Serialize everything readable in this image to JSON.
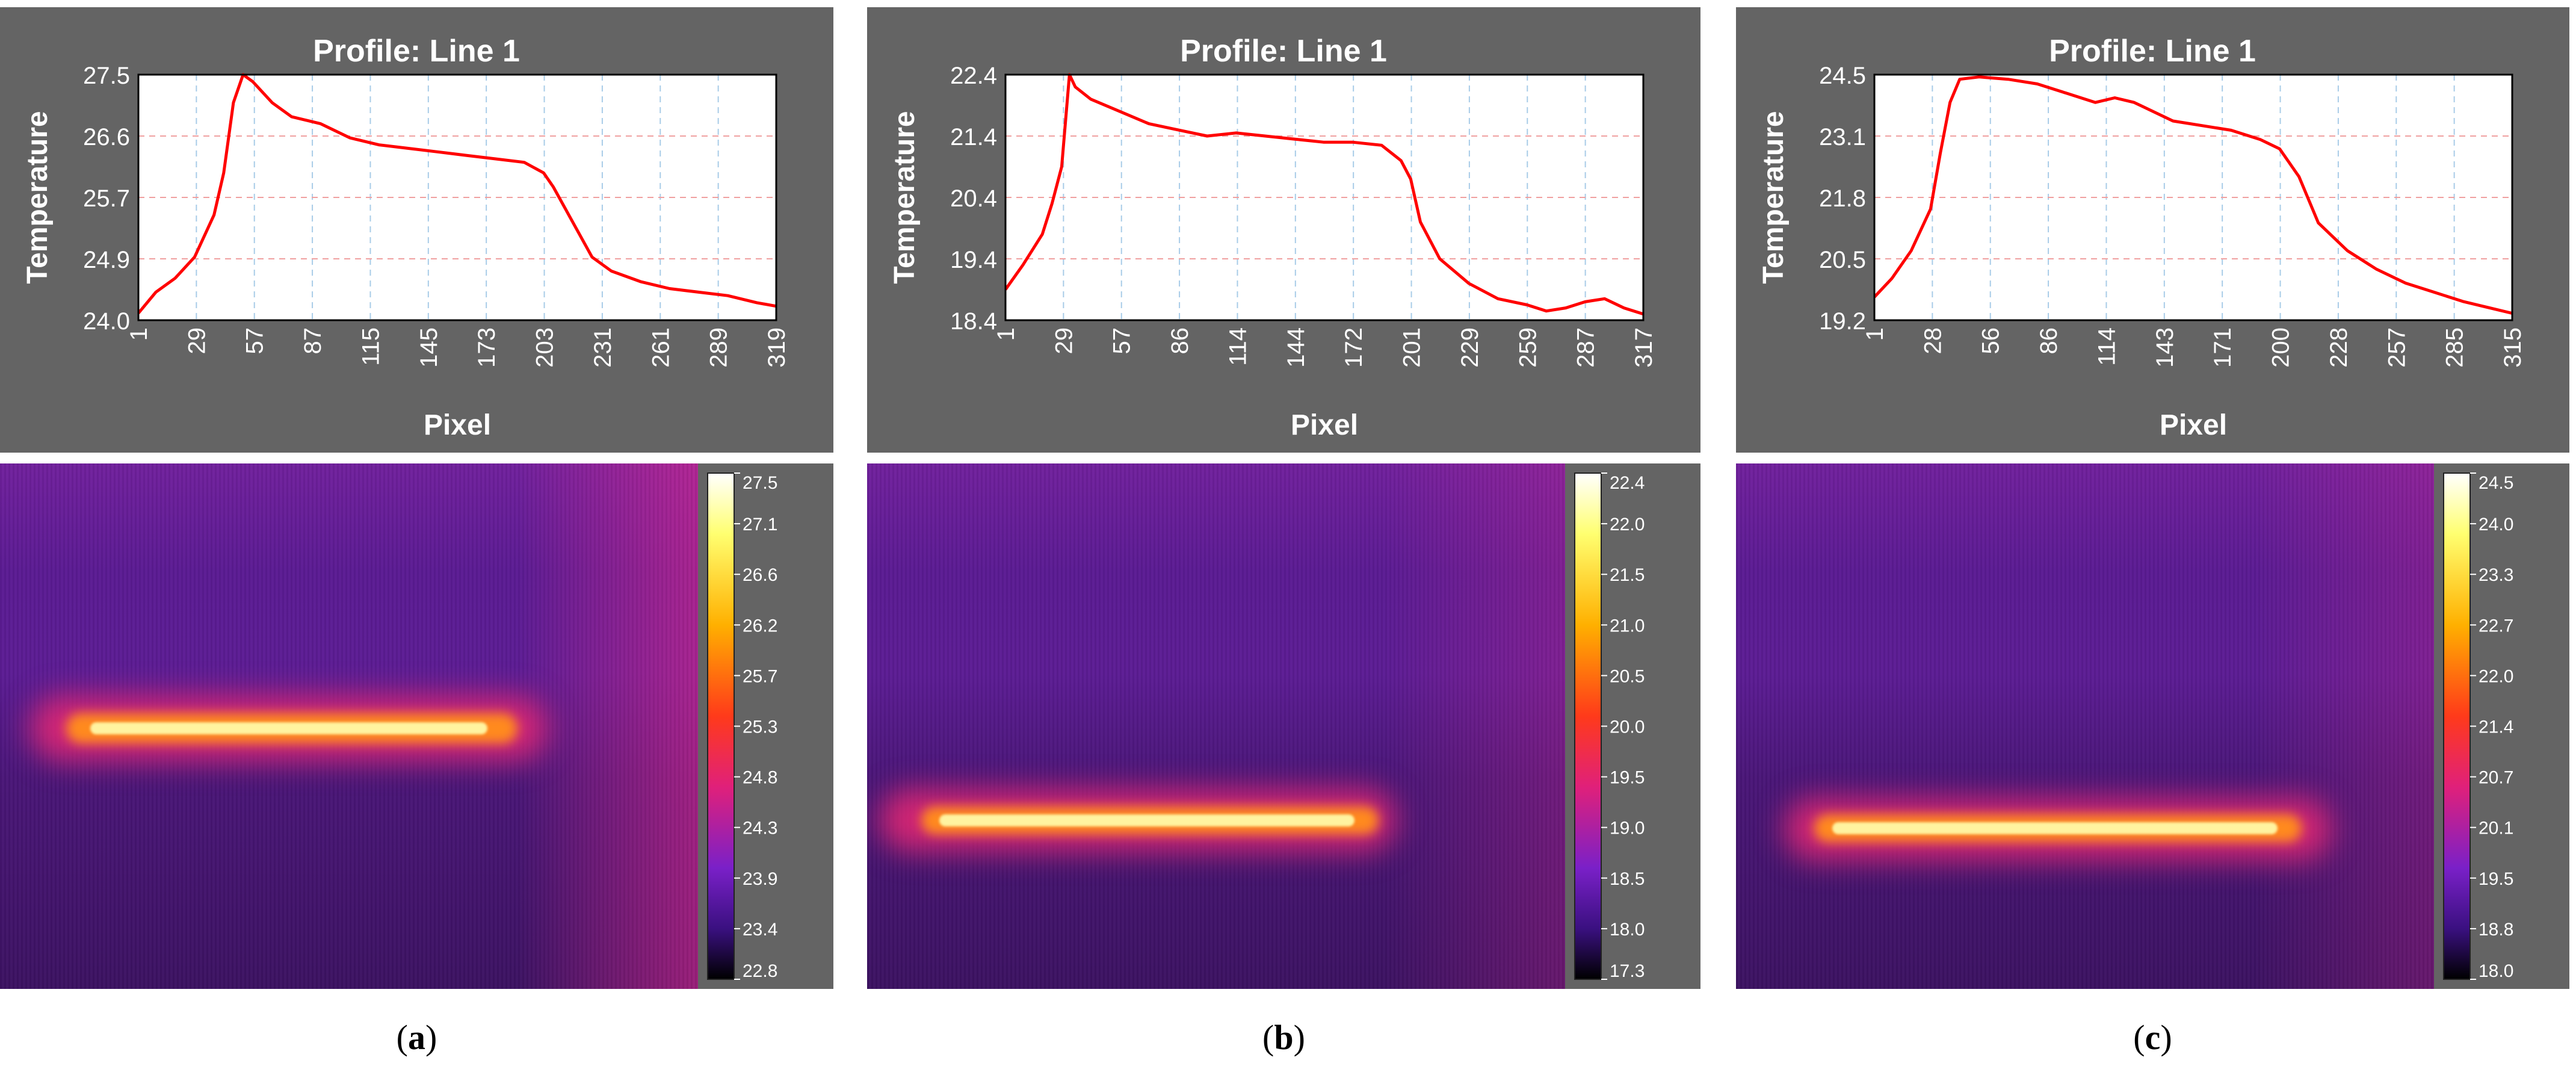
{
  "colors": {
    "panel_background": "#646464",
    "plot_background": "#ffffff",
    "line": "#ff0000",
    "grid_horizontal": "#f0a0a0",
    "grid_vertical": "#a8cce8",
    "label_text": "#ffffff"
  },
  "chart_data": [
    {
      "type": "line",
      "caption": "a",
      "title": "Profile: Line 1",
      "xlabel": "Pixel",
      "ylabel": "Temperature",
      "xlim": [
        1,
        330
      ],
      "ylim": [
        24.0,
        27.5
      ],
      "x_ticks": [
        "1",
        "29",
        "57",
        "87",
        "115",
        "145",
        "173",
        "203",
        "231",
        "261",
        "289",
        "319"
      ],
      "y_ticks": [
        "24.0",
        "24.9",
        "25.7",
        "26.6",
        "27.5"
      ],
      "x": [
        1,
        10,
        20,
        30,
        40,
        45,
        50,
        55,
        60,
        70,
        80,
        95,
        110,
        125,
        140,
        155,
        170,
        185,
        200,
        210,
        215,
        225,
        235,
        245,
        260,
        275,
        290,
        305,
        320,
        330
      ],
      "values": [
        24.1,
        24.4,
        24.6,
        24.9,
        25.5,
        26.1,
        27.1,
        27.5,
        27.4,
        27.1,
        26.9,
        26.8,
        26.6,
        26.5,
        26.45,
        26.4,
        26.35,
        26.3,
        26.25,
        26.1,
        25.9,
        25.4,
        24.9,
        24.7,
        24.55,
        24.45,
        24.4,
        24.35,
        24.25,
        24.2
      ],
      "colorbar": {
        "ticks": [
          "27.5",
          "27.1",
          "26.6",
          "26.2",
          "25.7",
          "25.3",
          "24.8",
          "24.3",
          "23.9",
          "23.4",
          "22.8"
        ]
      }
    },
    {
      "type": "line",
      "caption": "b",
      "title": "Profile: Line 1",
      "xlabel": "Pixel",
      "ylabel": "Temperature",
      "xlim": [
        1,
        330
      ],
      "ylim": [
        18.4,
        22.4
      ],
      "x_ticks": [
        "1",
        "29",
        "57",
        "86",
        "114",
        "144",
        "172",
        "201",
        "229",
        "259",
        "287",
        "317"
      ],
      "y_ticks": [
        "18.4",
        "19.4",
        "20.4",
        "21.4",
        "22.4"
      ],
      "x": [
        1,
        10,
        20,
        25,
        30,
        34,
        37,
        45,
        60,
        75,
        90,
        105,
        120,
        135,
        150,
        165,
        180,
        195,
        205,
        210,
        215,
        225,
        240,
        255,
        270,
        280,
        290,
        300,
        310,
        320,
        330
      ],
      "values": [
        18.9,
        19.3,
        19.8,
        20.3,
        20.9,
        22.4,
        22.2,
        22.0,
        21.8,
        21.6,
        21.5,
        21.4,
        21.45,
        21.4,
        21.35,
        21.3,
        21.3,
        21.25,
        21.0,
        20.7,
        20.0,
        19.4,
        19.0,
        18.75,
        18.65,
        18.55,
        18.6,
        18.7,
        18.75,
        18.6,
        18.5
      ],
      "colorbar": {
        "ticks": [
          "22.4",
          "22.0",
          "21.5",
          "21.0",
          "20.5",
          "20.0",
          "19.5",
          "19.0",
          "18.5",
          "18.0",
          "17.3"
        ]
      }
    },
    {
      "type": "line",
      "caption": "c",
      "title": "Profile: Line 1",
      "xlabel": "Pixel",
      "ylabel": "Temperature",
      "xlim": [
        1,
        330
      ],
      "ylim": [
        19.2,
        24.5
      ],
      "x_ticks": [
        "1",
        "28",
        "56",
        "86",
        "114",
        "143",
        "171",
        "200",
        "228",
        "257",
        "285",
        "315"
      ],
      "y_ticks": [
        "19.2",
        "20.5",
        "21.8",
        "23.1",
        "24.5"
      ],
      "x": [
        1,
        10,
        20,
        30,
        35,
        40,
        45,
        55,
        70,
        85,
        100,
        115,
        125,
        135,
        145,
        155,
        170,
        185,
        200,
        210,
        220,
        230,
        245,
        260,
        275,
        290,
        305,
        315,
        330
      ],
      "values": [
        19.7,
        20.1,
        20.7,
        21.6,
        22.8,
        23.9,
        24.4,
        24.45,
        24.4,
        24.3,
        24.1,
        23.9,
        24.0,
        23.9,
        23.7,
        23.5,
        23.4,
        23.3,
        23.1,
        22.9,
        22.3,
        21.3,
        20.7,
        20.3,
        20.0,
        19.8,
        19.6,
        19.5,
        19.35
      ],
      "colorbar": {
        "ticks": [
          "24.5",
          "24.0",
          "23.3",
          "22.7",
          "22.0",
          "21.4",
          "20.7",
          "20.1",
          "19.5",
          "18.8",
          "18.0"
        ]
      }
    }
  ]
}
